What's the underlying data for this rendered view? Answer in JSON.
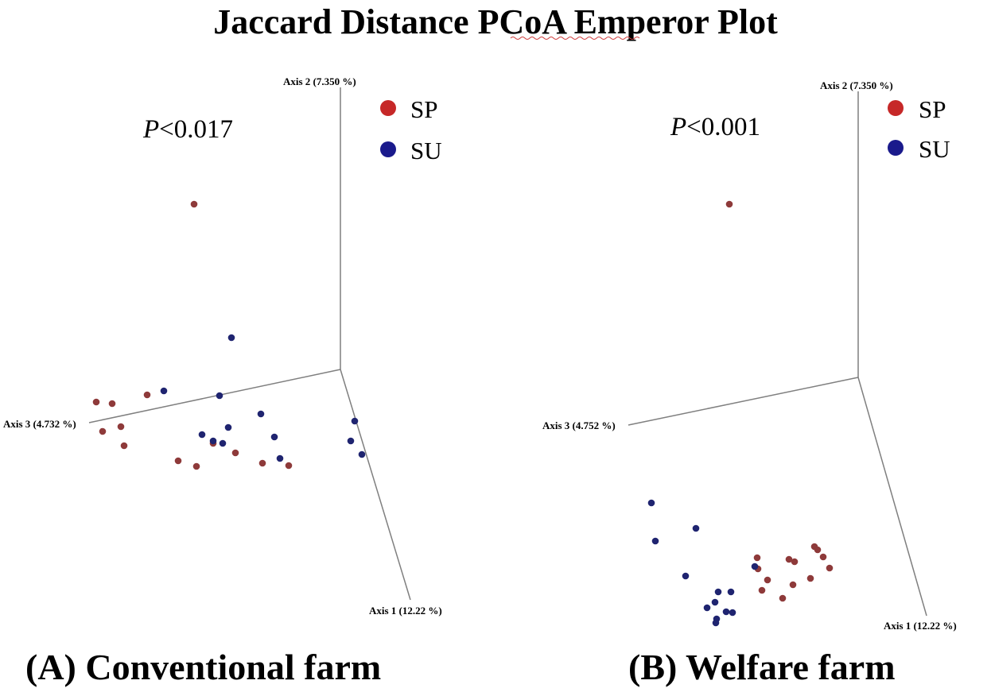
{
  "chart_data": {
    "type": "scatter",
    "projection": "3d",
    "title": "Jaccard Distance PCoA Emperor Plot",
    "legend": [
      {
        "name": "SP",
        "color": "#c62828"
      },
      {
        "name": "SU",
        "color": "#1a1a8c"
      }
    ],
    "point_colors": {
      "SP": "#8e3a3a",
      "SU": "#1f2470"
    },
    "panels": [
      {
        "caption": "(A) Conventional farm",
        "pvalue": {
          "label": "P",
          "rest": "<0.017"
        },
        "axes": {
          "axis1": "Axis 1 (12.22 %)",
          "axis2": "Axis 2 (7.350 %)",
          "axis3": "Axis 3 (4.732 %)"
        },
        "points": {
          "SP": [
            [
              244,
              257
            ],
            [
              121,
              506
            ],
            [
              141,
              508
            ],
            [
              185,
              497
            ],
            [
              152,
              537
            ],
            [
              129,
              543
            ],
            [
              156,
              561
            ],
            [
              224,
              580
            ],
            [
              247,
              587
            ],
            [
              268,
              558
            ],
            [
              296,
              570
            ],
            [
              330,
              583
            ],
            [
              363,
              586
            ]
          ],
          "SU": [
            [
              291,
              425
            ],
            [
              206,
              492
            ],
            [
              276,
              498
            ],
            [
              328,
              521
            ],
            [
              287,
              538
            ],
            [
              254,
              547
            ],
            [
              268,
              555
            ],
            [
              280,
              558
            ],
            [
              345,
              550
            ],
            [
              352,
              577
            ],
            [
              446,
              530
            ],
            [
              441,
              555
            ],
            [
              455,
              572
            ]
          ]
        }
      },
      {
        "caption": "(B) Welfare farm",
        "pvalue": {
          "label": "P",
          "rest": "<0.001"
        },
        "axes": {
          "axis1": "Axis 1 (12.22 %)",
          "axis2": "Axis 2 (7.350 %)",
          "axis3": "Axis 3 (4.752 %)"
        },
        "points": {
          "SP": [
            [
              917,
              257
            ],
            [
              952,
              702
            ],
            [
              992,
              704
            ],
            [
              999,
              707
            ],
            [
              1024,
              688
            ],
            [
              1028,
              692
            ],
            [
              1035,
              701
            ],
            [
              1043,
              715
            ],
            [
              953,
              716
            ],
            [
              965,
              730
            ],
            [
              958,
              743
            ],
            [
              997,
              736
            ],
            [
              1019,
              728
            ],
            [
              984,
              753
            ]
          ],
          "SU": [
            [
              819,
              633
            ],
            [
              824,
              681
            ],
            [
              875,
              665
            ],
            [
              949,
              713
            ],
            [
              862,
              725
            ],
            [
              903,
              745
            ],
            [
              919,
              745
            ],
            [
              899,
              758
            ],
            [
              889,
              765
            ],
            [
              901,
              779
            ],
            [
              900,
              784
            ],
            [
              913,
              770
            ],
            [
              921,
              771
            ]
          ]
        }
      }
    ]
  }
}
